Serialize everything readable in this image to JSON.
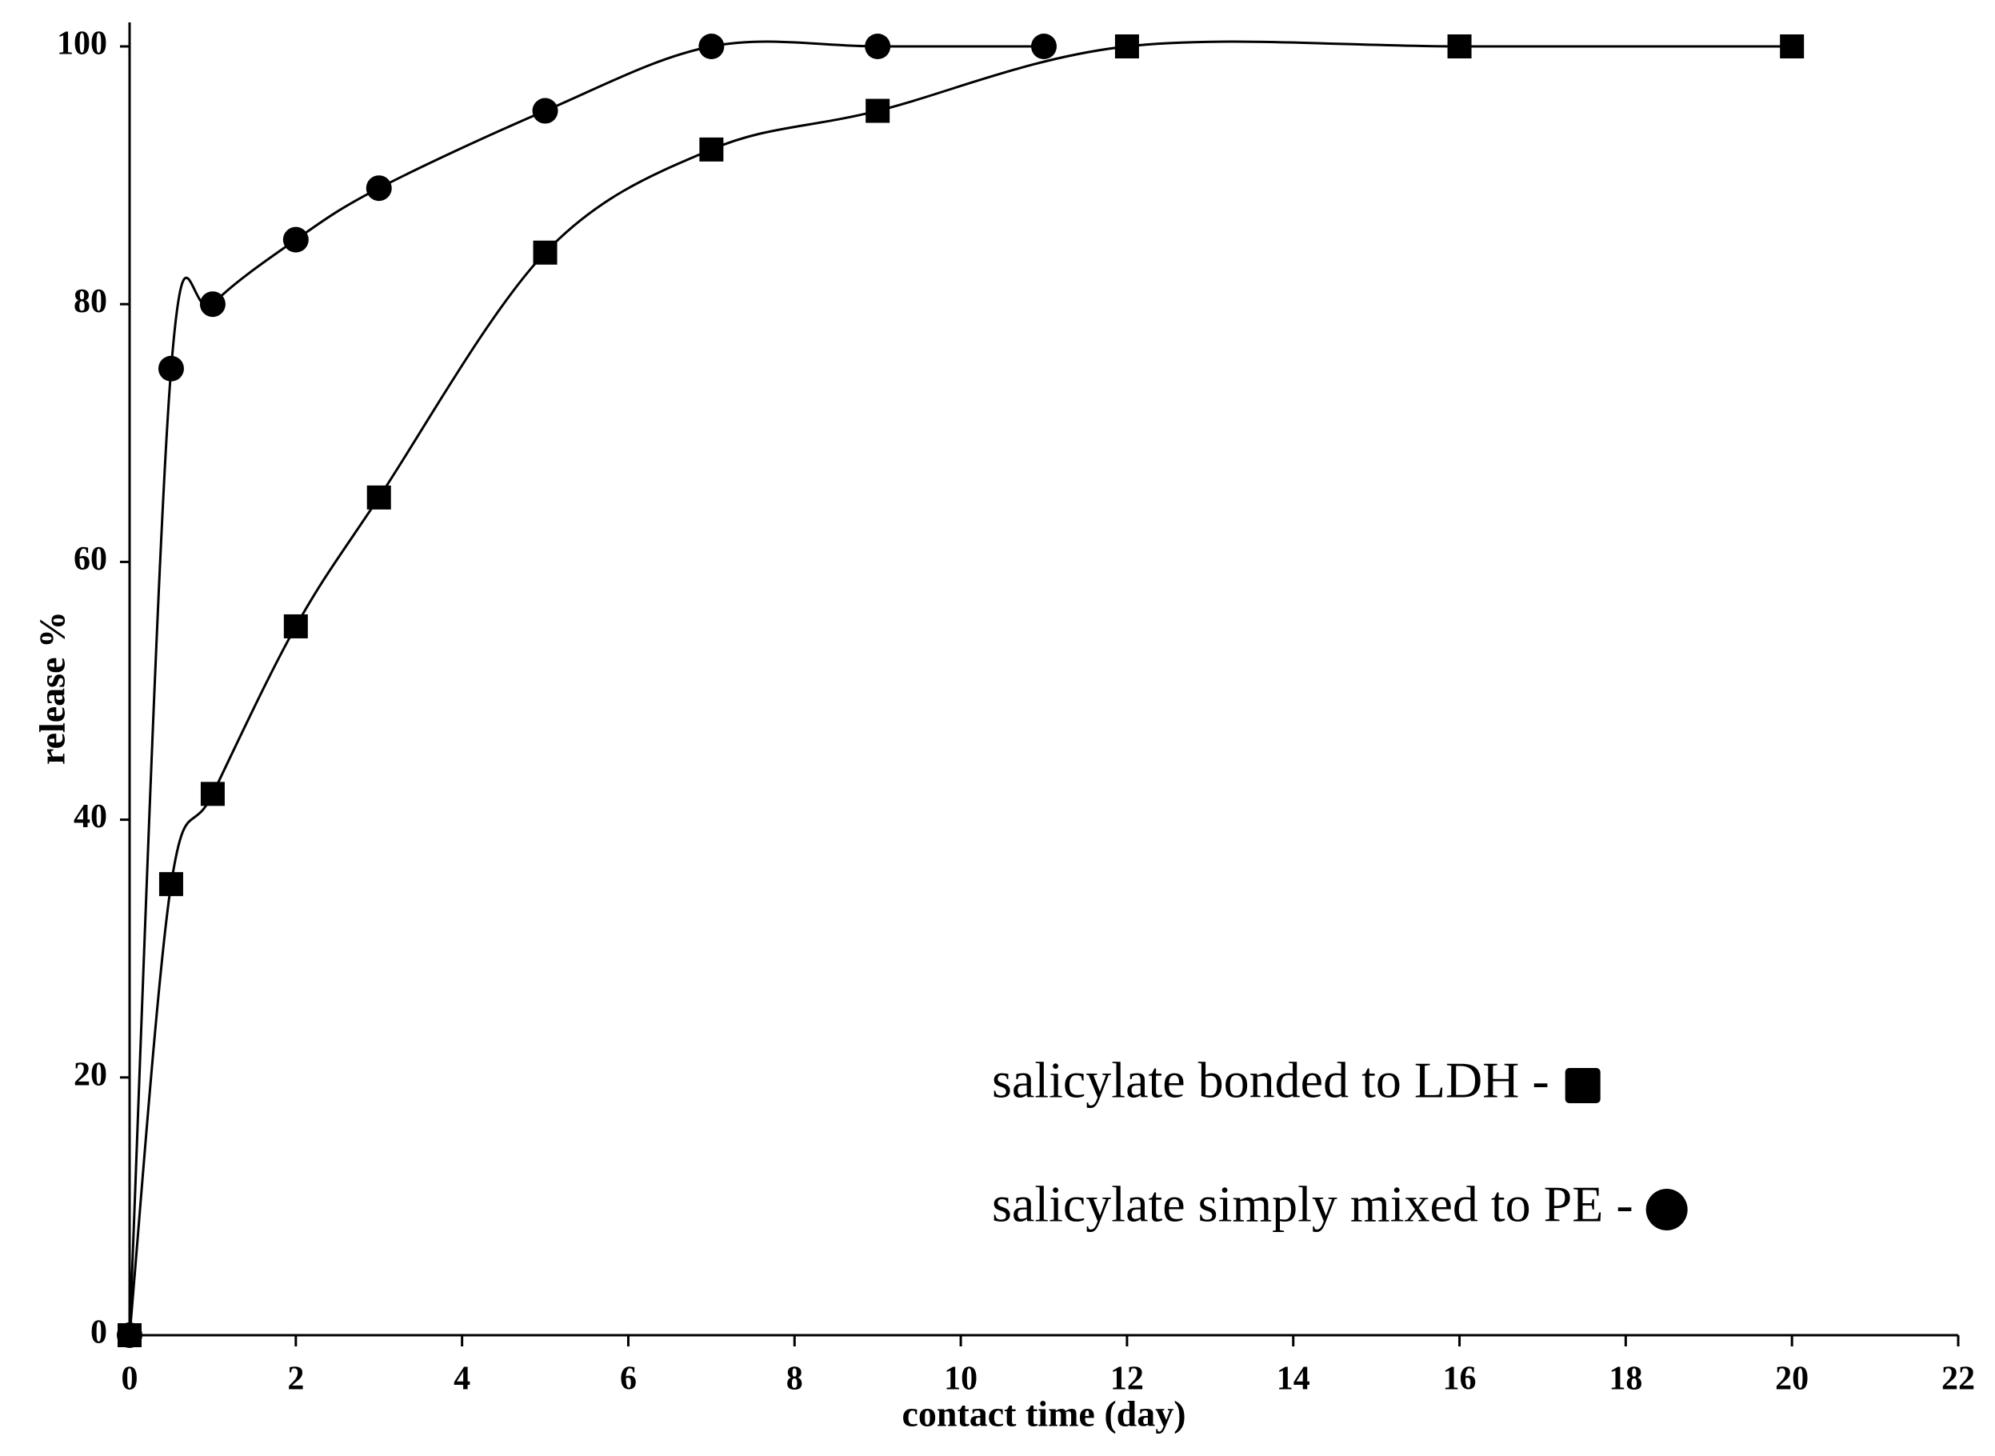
{
  "chart_data": {
    "type": "line",
    "x_label": "contact time (day)",
    "y_label": "release %",
    "xlim": [
      0,
      22
    ],
    "xticks": [
      0,
      2,
      4,
      6,
      8,
      10,
      12,
      14,
      16,
      18,
      20,
      22
    ],
    "ylim": [
      0,
      100
    ],
    "yticks": [
      0,
      20,
      40,
      60,
      80,
      100
    ],
    "series": [
      {
        "name": "salicylate bonded to LDH -",
        "color": "#000000",
        "marker": "square",
        "x": [
          0,
          0.5,
          1,
          2,
          3,
          5,
          7,
          9,
          12,
          16,
          20
        ],
        "values": [
          0,
          35,
          42,
          55,
          65,
          84,
          92,
          95,
          100,
          100,
          100
        ]
      },
      {
        "name": "salicylate simply mixed to PE -",
        "color": "#000000",
        "marker": "circle",
        "x": [
          0,
          0.5,
          1,
          2,
          3,
          5,
          7,
          9,
          11
        ],
        "values": [
          0,
          75,
          80,
          85,
          89,
          95,
          100,
          100,
          100
        ]
      }
    ]
  }
}
